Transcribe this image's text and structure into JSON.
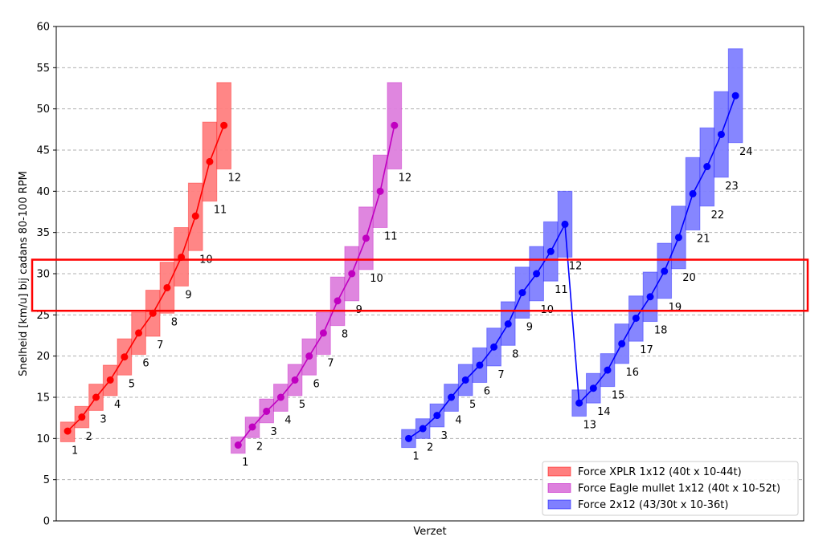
{
  "chart_data": {
    "type": "line",
    "title": "",
    "xlabel": "Verzet",
    "ylabel": "Snelheid [km/u] bij cadans 80-100 RPM",
    "ylim": [
      0,
      60
    ],
    "yticks": [
      0,
      5,
      10,
      15,
      20,
      25,
      30,
      35,
      40,
      45,
      50,
      55,
      60
    ],
    "grid": "horizontal dashed",
    "legend_position": "bottom-right",
    "highlight_band": {
      "y_min": 25.5,
      "y_max": 31.7,
      "color": "#ff0000"
    },
    "series": [
      {
        "name": "Force XPLR 1x12 (40t x 10-44t)",
        "color": "#ff0000",
        "fill_color": "#ff7f7f",
        "x_start": 1,
        "gears": [
          "1",
          "2",
          "3",
          "4",
          "5",
          "6",
          "7",
          "8",
          "9",
          "10",
          "11",
          "12"
        ],
        "values": [
          10.9,
          12.6,
          15.0,
          17.1,
          19.9,
          22.8,
          25.2,
          28.3,
          32.0,
          37.0,
          43.6,
          48.0
        ],
        "low": [
          9.6,
          11.3,
          13.4,
          15.2,
          17.7,
          20.2,
          22.4,
          25.2,
          28.5,
          32.8,
          38.8,
          42.7
        ],
        "high": [
          12.0,
          13.9,
          16.6,
          18.9,
          22.1,
          25.3,
          28.0,
          31.4,
          35.6,
          41.0,
          48.4,
          53.2
        ]
      },
      {
        "name": "Force Eagle mullet 1x12 (40t x 10-52t)",
        "color": "#c000c0",
        "fill_color": "#dd80dd",
        "x_start": 13,
        "gears": [
          "1",
          "2",
          "3",
          "4",
          "5",
          "6",
          "7",
          "8",
          "9",
          "10",
          "11",
          "12"
        ],
        "values": [
          9.2,
          11.4,
          13.3,
          15.0,
          17.1,
          20.0,
          22.8,
          26.7,
          30.0,
          34.3,
          40.0,
          48.0
        ],
        "low": [
          8.2,
          10.1,
          11.9,
          13.3,
          15.2,
          17.7,
          20.2,
          23.7,
          26.7,
          30.5,
          35.6,
          42.7
        ],
        "high": [
          10.2,
          12.6,
          14.8,
          16.6,
          19.0,
          22.1,
          25.3,
          29.6,
          33.3,
          38.1,
          44.4,
          53.2
        ]
      },
      {
        "name": "Force 2x12 (43/30t x 10-36t)",
        "color": "#0000ff",
        "fill_color": "#7f7fff",
        "x_start": 25,
        "gears": [
          "1",
          "2",
          "3",
          "4",
          "5",
          "6",
          "7",
          "8",
          "9",
          "10",
          "11",
          "12",
          "13",
          "14",
          "15",
          "16",
          "17",
          "18",
          "19",
          "20",
          "21",
          "22",
          "23",
          "24"
        ],
        "values": [
          10.0,
          11.2,
          12.8,
          15.0,
          17.1,
          18.9,
          21.1,
          23.9,
          27.7,
          30.0,
          32.7,
          36.0,
          14.3,
          16.1,
          18.3,
          21.5,
          24.6,
          27.2,
          30.3,
          34.4,
          39.7,
          43.0,
          46.9,
          51.6
        ],
        "low": [
          8.9,
          10.0,
          11.4,
          13.3,
          15.2,
          16.8,
          18.8,
          21.3,
          24.6,
          26.7,
          29.1,
          32.0,
          12.7,
          14.3,
          16.3,
          19.1,
          21.8,
          24.2,
          27.0,
          30.6,
          35.3,
          38.2,
          41.7,
          45.9
        ],
        "high": [
          11.1,
          12.4,
          14.2,
          16.6,
          19.0,
          21.0,
          23.4,
          26.6,
          30.8,
          33.3,
          36.3,
          40.0,
          15.9,
          17.9,
          20.3,
          23.9,
          27.3,
          30.2,
          33.7,
          38.2,
          44.1,
          47.7,
          52.1,
          57.3
        ]
      }
    ]
  }
}
